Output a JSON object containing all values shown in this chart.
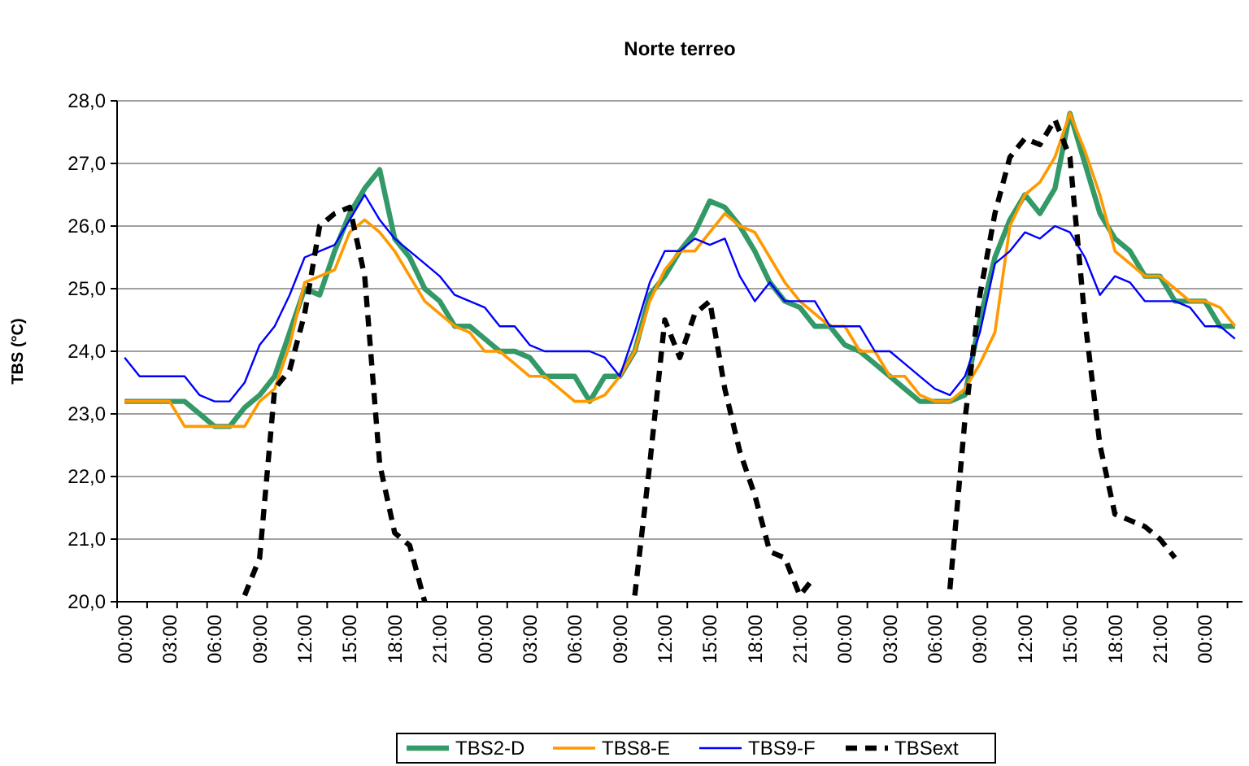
{
  "chart_data": {
    "type": "line",
    "title": "Norte terreo",
    "ylabel": "TBS (°C)",
    "categories": [
      "00:00",
      null,
      null,
      "03:00",
      null,
      null,
      "06:00",
      null,
      null,
      "09:00",
      null,
      null,
      "12:00",
      null,
      null,
      "15:00",
      null,
      null,
      "18:00",
      null,
      null,
      "21:00",
      null,
      null,
      "00:00",
      null,
      null,
      "03:00",
      null,
      null,
      "06:00",
      null,
      null,
      "09:00",
      null,
      null,
      "12:00",
      null,
      null,
      "15:00",
      null,
      null,
      "18:00",
      null,
      null,
      "21:00",
      null,
      null,
      "00:00",
      null,
      null,
      "03:00",
      null,
      null,
      "06:00",
      null,
      null,
      "09:00",
      null,
      null,
      "12:00",
      null,
      null,
      "15:00",
      null,
      null,
      "18:00",
      null,
      null,
      "21:00",
      null,
      null,
      "00:00",
      null,
      null
    ],
    "ylim": [
      20,
      28
    ],
    "yticks": [
      {
        "value": 20,
        "label": "20,0"
      },
      {
        "value": 21,
        "label": "21,0"
      },
      {
        "value": 22,
        "label": "22,0"
      },
      {
        "value": 23,
        "label": "23,0"
      },
      {
        "value": 24,
        "label": "24,0"
      },
      {
        "value": 25,
        "label": "25,0"
      },
      {
        "value": 26,
        "label": "26,0"
      },
      {
        "value": 27,
        "label": "27,0"
      },
      {
        "value": 28,
        "label": "28,0"
      }
    ],
    "grid": "y",
    "legend": "bottom",
    "series": [
      {
        "name": "TBS2-D",
        "color": "#339966",
        "values": [
          23.2,
          23.2,
          23.2,
          23.2,
          23.2,
          23.0,
          22.8,
          22.8,
          23.1,
          23.3,
          23.6,
          24.3,
          25.0,
          24.9,
          25.6,
          26.2,
          26.6,
          26.9,
          25.8,
          25.5,
          25.0,
          24.8,
          24.4,
          24.4,
          24.2,
          24.0,
          24.0,
          23.9,
          23.6,
          23.6,
          23.6,
          23.2,
          23.6,
          23.6,
          24.0,
          24.9,
          25.2,
          25.6,
          25.9,
          26.4,
          26.3,
          26.0,
          25.6,
          25.1,
          24.8,
          24.7,
          24.4,
          24.4,
          24.1,
          24.0,
          23.8,
          23.6,
          23.4,
          23.2,
          23.2,
          23.2,
          23.3,
          24.5,
          25.5,
          26.1,
          26.5,
          26.2,
          26.6,
          27.8,
          27.0,
          26.2,
          25.8,
          25.6,
          25.2,
          25.2,
          24.8,
          24.8,
          24.8,
          24.4,
          24.4
        ]
      },
      {
        "name": "TBS8-E",
        "color": "#ff9900",
        "values": [
          23.2,
          23.2,
          23.2,
          23.2,
          22.8,
          22.8,
          22.8,
          22.8,
          22.8,
          23.2,
          23.4,
          24.1,
          25.1,
          25.2,
          25.3,
          25.9,
          26.1,
          25.9,
          25.6,
          25.2,
          24.8,
          24.6,
          24.4,
          24.3,
          24.0,
          24.0,
          23.8,
          23.6,
          23.6,
          23.4,
          23.2,
          23.2,
          23.3,
          23.6,
          24.0,
          24.8,
          25.3,
          25.6,
          25.6,
          25.9,
          26.2,
          26.0,
          25.9,
          25.5,
          25.1,
          24.8,
          24.6,
          24.4,
          24.4,
          24.0,
          24.0,
          23.6,
          23.6,
          23.3,
          23.2,
          23.2,
          23.4,
          23.8,
          24.3,
          26.0,
          26.5,
          26.7,
          27.1,
          27.8,
          27.2,
          26.5,
          25.6,
          25.4,
          25.2,
          25.2,
          25.0,
          24.8,
          24.8,
          24.7,
          24.4
        ]
      },
      {
        "name": "TBS9-F",
        "color": "#0000ff",
        "values": [
          23.9,
          23.6,
          23.6,
          23.6,
          23.6,
          23.3,
          23.2,
          23.2,
          23.5,
          24.1,
          24.4,
          24.9,
          25.5,
          25.6,
          25.7,
          26.1,
          26.5,
          26.1,
          25.8,
          25.6,
          25.4,
          25.2,
          24.9,
          24.8,
          24.7,
          24.4,
          24.4,
          24.1,
          24.0,
          24.0,
          24.0,
          24.0,
          23.9,
          23.6,
          24.3,
          25.1,
          25.6,
          25.6,
          25.8,
          25.7,
          25.8,
          25.2,
          24.8,
          25.1,
          24.8,
          24.8,
          24.8,
          24.4,
          24.4,
          24.4,
          24.0,
          24.0,
          23.8,
          23.6,
          23.4,
          23.3,
          23.6,
          24.3,
          25.4,
          25.6,
          25.9,
          25.8,
          26.0,
          25.9,
          25.5,
          24.9,
          25.2,
          25.1,
          24.8,
          24.8,
          24.8,
          24.7,
          24.4,
          24.4,
          24.2
        ]
      },
      {
        "name": "TBSext",
        "color": "#000000",
        "line_style": "dashed",
        "values": [
          null,
          null,
          null,
          null,
          null,
          null,
          null,
          null,
          20.1,
          20.7,
          23.4,
          23.7,
          24.6,
          26.0,
          26.2,
          26.3,
          25.2,
          22.2,
          21.1,
          20.9,
          20.0,
          null,
          null,
          null,
          null,
          null,
          null,
          null,
          null,
          null,
          null,
          null,
          null,
          null,
          20.1,
          22.2,
          24.5,
          23.9,
          24.6,
          24.8,
          23.4,
          22.4,
          21.7,
          20.8,
          20.7,
          20.1,
          20.4,
          null,
          null,
          null,
          null,
          null,
          null,
          null,
          null,
          20.2,
          22.9,
          24.9,
          26.2,
          27.1,
          27.4,
          27.3,
          27.7,
          27.1,
          24.5,
          22.5,
          21.4,
          21.3,
          21.2,
          21.0,
          20.7,
          null,
          null,
          null,
          null
        ]
      }
    ]
  }
}
